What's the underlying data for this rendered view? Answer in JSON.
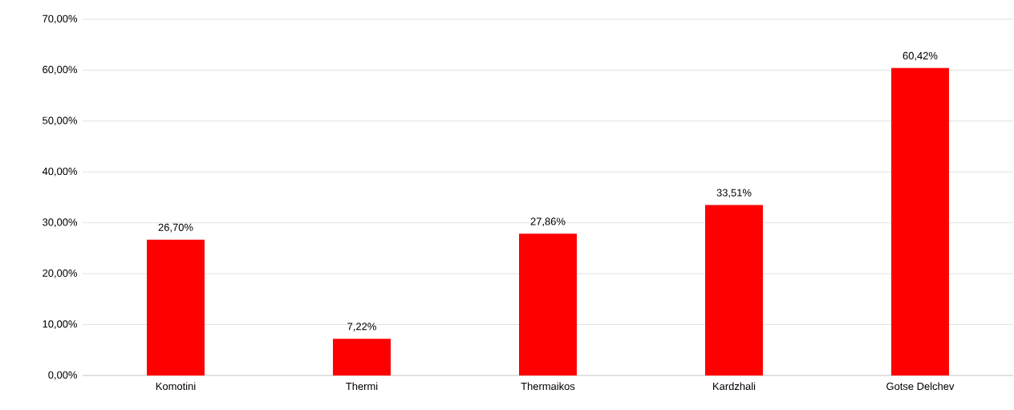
{
  "chart_data": {
    "type": "bar",
    "categories": [
      "Komotini",
      "Thermi",
      "Thermaikos",
      "Kardzhali",
      "Gotse Delchev"
    ],
    "values": [
      26.7,
      7.22,
      27.86,
      33.51,
      60.42
    ],
    "value_labels": [
      "26,70%",
      "7,22%",
      "27,86%",
      "33,51%",
      "60,42%"
    ],
    "color": "#ff0000",
    "ylim": [
      0,
      70
    ],
    "yticks": [
      {
        "value": 0,
        "label": "0,00%"
      },
      {
        "value": 10,
        "label": "10,00%"
      },
      {
        "value": 20,
        "label": "20,00%"
      },
      {
        "value": 30,
        "label": "30,00%"
      },
      {
        "value": 40,
        "label": "40,00%"
      },
      {
        "value": 50,
        "label": "50,00%"
      },
      {
        "value": 60,
        "label": "60,00%"
      },
      {
        "value": 70,
        "label": "70,00%"
      }
    ],
    "grid": "y"
  }
}
